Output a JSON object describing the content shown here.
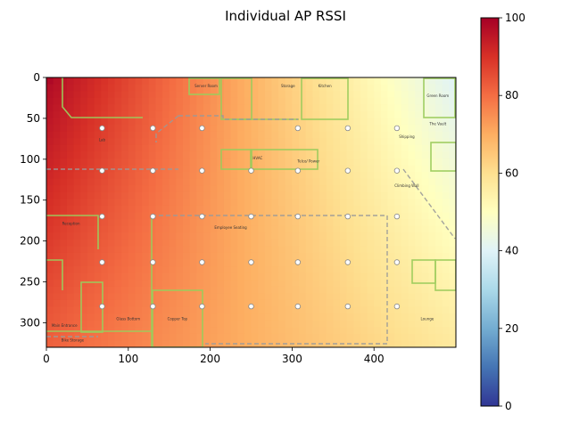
{
  "chart_data": {
    "type": "heatmap",
    "title": "Individual AP RSSI",
    "xlabel": "",
    "ylabel": "",
    "x_range": [
      0,
      500
    ],
    "y_range": [
      0,
      330
    ],
    "y_inverted": true,
    "x_ticks": [
      0,
      100,
      200,
      300,
      400
    ],
    "y_ticks": [
      0,
      50,
      100,
      150,
      200,
      250,
      300
    ],
    "colorbar": {
      "range": [
        0,
        100
      ],
      "ticks": [
        0,
        20,
        40,
        60,
        80,
        100
      ],
      "colormap": "RdYlBu_r",
      "stops": [
        "#313695",
        "#4575b4",
        "#74add1",
        "#abd9e9",
        "#e0f3f8",
        "#ffffbf",
        "#fee090",
        "#fdae61",
        "#f46d43",
        "#d73027",
        "#a50026"
      ]
    },
    "grid": false,
    "peak": {
      "x": 0,
      "y": 0,
      "value": 100
    },
    "value_corners": {
      "top_left": 98,
      "top_right": 40,
      "bottom_left": 82,
      "bottom_right": 57
    },
    "ap_markers": [
      {
        "x": 68,
        "y": 62
      },
      {
        "x": 130,
        "y": 62
      },
      {
        "x": 190,
        "y": 62
      },
      {
        "x": 307,
        "y": 62
      },
      {
        "x": 368,
        "y": 62
      },
      {
        "x": 428,
        "y": 62
      },
      {
        "x": 68,
        "y": 114
      },
      {
        "x": 130,
        "y": 114
      },
      {
        "x": 190,
        "y": 114
      },
      {
        "x": 250,
        "y": 114
      },
      {
        "x": 307,
        "y": 114
      },
      {
        "x": 368,
        "y": 114
      },
      {
        "x": 428,
        "y": 114
      },
      {
        "x": 68,
        "y": 170
      },
      {
        "x": 130,
        "y": 170
      },
      {
        "x": 190,
        "y": 170
      },
      {
        "x": 250,
        "y": 170
      },
      {
        "x": 307,
        "y": 170
      },
      {
        "x": 368,
        "y": 170
      },
      {
        "x": 428,
        "y": 170
      },
      {
        "x": 68,
        "y": 226
      },
      {
        "x": 130,
        "y": 226
      },
      {
        "x": 190,
        "y": 226
      },
      {
        "x": 250,
        "y": 226
      },
      {
        "x": 307,
        "y": 226
      },
      {
        "x": 368,
        "y": 226
      },
      {
        "x": 428,
        "y": 226
      },
      {
        "x": 68,
        "y": 280
      },
      {
        "x": 130,
        "y": 280
      },
      {
        "x": 190,
        "y": 280
      },
      {
        "x": 250,
        "y": 280
      },
      {
        "x": 307,
        "y": 280
      },
      {
        "x": 368,
        "y": 280
      },
      {
        "x": 428,
        "y": 280
      }
    ],
    "room_labels": [
      {
        "text": "Server Room",
        "x": 195,
        "y": 12
      },
      {
        "text": "Storage",
        "x": 295,
        "y": 12
      },
      {
        "text": "Kitchen",
        "x": 340,
        "y": 12
      },
      {
        "text": "Green Room",
        "x": 478,
        "y": 24
      },
      {
        "text": "The Vault",
        "x": 478,
        "y": 58
      },
      {
        "text": "Shipping",
        "x": 440,
        "y": 74
      },
      {
        "text": "Lab",
        "x": 68,
        "y": 78
      },
      {
        "text": "HVAC",
        "x": 258,
        "y": 100
      },
      {
        "text": "Telco/ Power",
        "x": 320,
        "y": 104
      },
      {
        "text": "Climbing Wall",
        "x": 440,
        "y": 134
      },
      {
        "text": "Reception",
        "x": 30,
        "y": 180
      },
      {
        "text": "Employee Seating",
        "x": 225,
        "y": 185
      },
      {
        "text": "Glass Bottom",
        "x": 100,
        "y": 297
      },
      {
        "text": "Copper Top",
        "x": 160,
        "y": 297
      },
      {
        "text": "Lounge",
        "x": 465,
        "y": 297
      },
      {
        "text": "Main Entrance",
        "x": 22,
        "y": 305
      },
      {
        "text": "Bike Storage",
        "x": 32,
        "y": 323
      }
    ]
  }
}
